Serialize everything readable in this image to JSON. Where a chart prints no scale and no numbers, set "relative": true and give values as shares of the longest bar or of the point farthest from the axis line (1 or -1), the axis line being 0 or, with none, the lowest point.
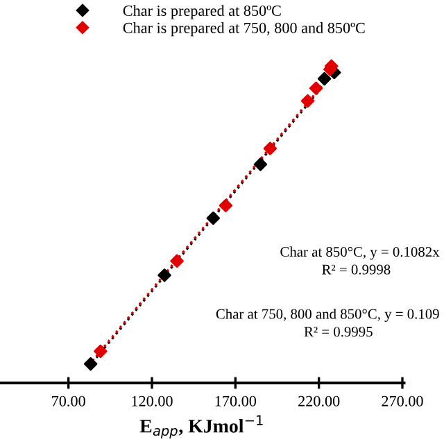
{
  "chart_data": {
    "type": "scatter",
    "relative": true,
    "xlabel": "E$_{app}$, KJmol$^{−1}$",
    "xlim": [
      29,
      271
    ],
    "xticks": [
      {
        "value": 70,
        "label": "70.00"
      },
      {
        "value": 120,
        "label": "120.00"
      },
      {
        "value": 170,
        "label": "170.00"
      },
      {
        "value": 220,
        "label": "220.00"
      },
      {
        "value": 270,
        "label": "270.00"
      }
    ],
    "marker": "diamond",
    "legend": "top left",
    "grid": false,
    "series": [
      {
        "name": "Char is prepared at 850ºC",
        "color": "#000000",
        "x": [
          83.3,
          127.5,
          156.7,
          185,
          223.3,
          229.2
        ],
        "values": [
          0.06,
          0.34,
          0.52,
          0.69,
          0.96,
          0.98
        ]
      },
      {
        "name": "Char is prepared at 750, 800 and 850ºC",
        "color": "#e00000",
        "x": [
          89.2,
          135,
          164.2,
          190.8,
          213.3,
          218.3,
          226.7,
          227.5
        ],
        "values": [
          0.1,
          0.385,
          0.56,
          0.74,
          0.89,
          0.93,
          0.99,
          1.0
        ]
      },
      {
        "type": "line",
        "marker": "none",
        "line_style": "dotted",
        "color": "#000000",
        "x": [
          82,
          230
        ],
        "values": [
          0.05,
          0.985
        ]
      },
      {
        "type": "line",
        "marker": "none",
        "line_style": "dotted",
        "color": "#e00000",
        "x": [
          82,
          230
        ],
        "values": [
          0.055,
          0.99
        ]
      }
    ],
    "annotations": [
      "Char at 850°C, y = 0.1082x",
      "R² = 0.9998",
      "Char at 750, 800 and 850°C, y = 0.109",
      "R² = 0.9995"
    ]
  }
}
